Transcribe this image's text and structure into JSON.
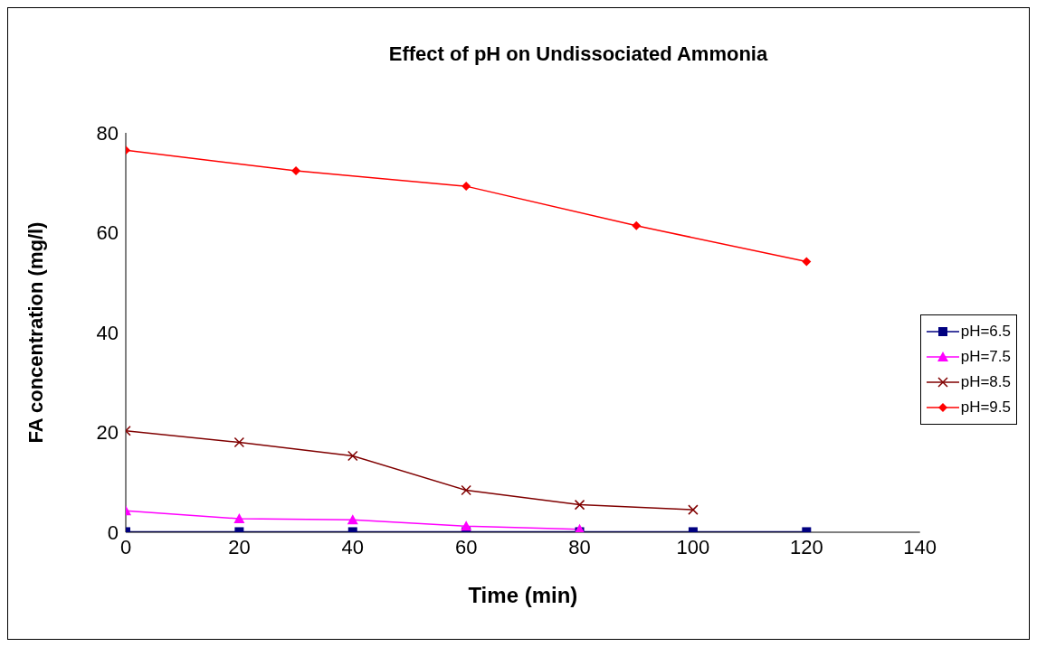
{
  "chart_data": {
    "type": "line",
    "title": "Effect of pH on Undissociated Ammonia",
    "xlabel": "Time (min)",
    "ylabel": "FA concentration (mg/l)",
    "xlim": [
      0,
      140
    ],
    "xticks": [
      0,
      20,
      40,
      60,
      80,
      100,
      120,
      140
    ],
    "ylim": [
      0,
      80
    ],
    "yticks": [
      0,
      20,
      40,
      60,
      80
    ],
    "grid": false,
    "legend": "right",
    "series": [
      {
        "name": "pH=6.5",
        "color": "#000080",
        "marker": "square",
        "x": [
          0,
          20,
          40,
          60,
          80,
          100,
          120
        ],
        "values": [
          0.1,
          0.1,
          0.1,
          0.1,
          0.1,
          0.1,
          0.1
        ]
      },
      {
        "name": "pH=7.5",
        "color": "#ff00ff",
        "marker": "triangle",
        "x": [
          0,
          20,
          40,
          60,
          80
        ],
        "values": [
          4.3,
          2.7,
          2.5,
          1.2,
          0.6
        ]
      },
      {
        "name": "pH=8.5",
        "color": "#800000",
        "marker": "cross",
        "x": [
          0,
          20,
          40,
          60,
          80,
          100
        ],
        "values": [
          20.3,
          18,
          15.3,
          8.4,
          5.5,
          4.5
        ]
      },
      {
        "name": "pH=9.5",
        "color": "#ff0000",
        "marker": "diamond",
        "x": [
          0,
          30,
          60,
          90,
          120
        ],
        "values": [
          76.5,
          72.4,
          69.3,
          61.4,
          54.2
        ]
      }
    ]
  }
}
